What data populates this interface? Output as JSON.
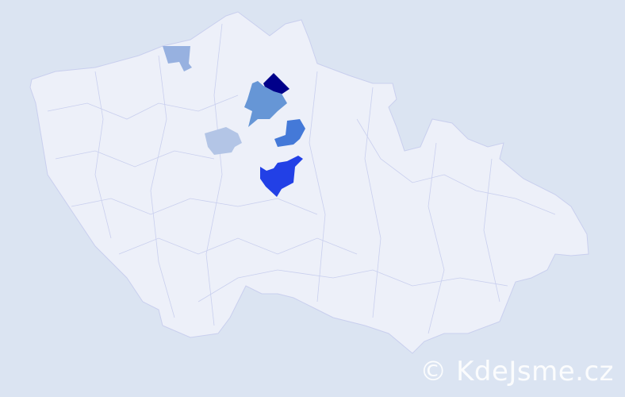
{
  "map": {
    "country_fill": "#edf0f9",
    "border_color": "#c9cfee",
    "background": "#dbe4f2",
    "highlighted_regions": [
      {
        "id": "region-north-west",
        "color": "#97b1e0"
      },
      {
        "id": "region-north-dark",
        "color": "#00008a"
      },
      {
        "id": "region-north-mid",
        "color": "#6696d6"
      },
      {
        "id": "region-central-light",
        "color": "#b3c5e6"
      },
      {
        "id": "region-central-east",
        "color": "#4479d8"
      },
      {
        "id": "region-central-south",
        "color": "#2240e6"
      }
    ]
  },
  "watermark": "© KdeJsme.cz"
}
